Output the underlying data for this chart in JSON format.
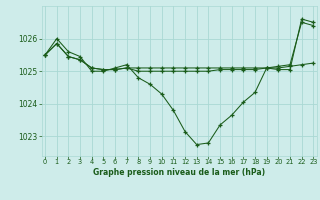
{
  "title": "Graphe pression niveau de la mer (hPa)",
  "bg_color": "#ceecea",
  "grid_color": "#aad8d4",
  "line_color": "#1a5c1a",
  "x_ticks": [
    0,
    1,
    2,
    3,
    4,
    5,
    6,
    7,
    8,
    9,
    10,
    11,
    12,
    13,
    14,
    15,
    16,
    17,
    18,
    19,
    20,
    21,
    22,
    23
  ],
  "y_ticks": [
    1023,
    1024,
    1025,
    1026
  ],
  "ylim": [
    1022.4,
    1027.0
  ],
  "xlim": [
    -0.3,
    23.3
  ],
  "series": [
    [
      1025.5,
      1025.85,
      1025.45,
      1025.35,
      1025.1,
      1025.05,
      1025.05,
      1025.1,
      1025.1,
      1025.1,
      1025.1,
      1025.1,
      1025.1,
      1025.1,
      1025.1,
      1025.1,
      1025.1,
      1025.1,
      1025.1,
      1025.1,
      1025.15,
      1025.2,
      1026.5,
      1026.4
    ],
    [
      1025.5,
      1025.85,
      1025.45,
      1025.35,
      1025.1,
      1025.05,
      1025.05,
      1025.1,
      1025.0,
      1025.0,
      1025.0,
      1025.0,
      1025.0,
      1025.0,
      1025.0,
      1025.05,
      1025.05,
      1025.05,
      1025.05,
      1025.1,
      1025.1,
      1025.15,
      1025.2,
      1025.25
    ],
    [
      1025.5,
      1026.0,
      1025.6,
      1025.45,
      1025.0,
      1025.0,
      1025.1,
      1025.2,
      1024.8,
      1024.6,
      1024.3,
      1023.8,
      1023.15,
      1022.75,
      1022.8,
      1023.35,
      1023.65,
      1024.05,
      1024.35,
      1025.1,
      1025.05,
      1025.05,
      1026.6,
      1026.5
    ]
  ]
}
